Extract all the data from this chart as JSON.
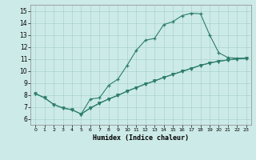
{
  "xlabel": "Humidex (Indice chaleur)",
  "bg_color": "#cceae7",
  "line_color": "#2d7d6e",
  "grid_color": "#aad4d0",
  "xlim": [
    -0.5,
    23.5
  ],
  "ylim": [
    5.5,
    15.5
  ],
  "xticks": [
    0,
    1,
    2,
    3,
    4,
    5,
    6,
    7,
    8,
    9,
    10,
    11,
    12,
    13,
    14,
    15,
    16,
    17,
    18,
    19,
    20,
    21,
    22,
    23
  ],
  "yticks": [
    6,
    7,
    8,
    9,
    10,
    11,
    12,
    13,
    14,
    15
  ],
  "line1_x": [
    0,
    1,
    2,
    3,
    4,
    5,
    6,
    7,
    8,
    9,
    10,
    11,
    12,
    13,
    14,
    15,
    16,
    17,
    18,
    19,
    20,
    21,
    22,
    23
  ],
  "line1_y": [
    8.1,
    7.75,
    7.2,
    6.9,
    6.75,
    6.4,
    7.65,
    7.75,
    8.8,
    9.3,
    10.45,
    11.7,
    12.55,
    12.7,
    13.85,
    14.1,
    14.6,
    14.8,
    14.75,
    13.0,
    11.5,
    11.1,
    11.05,
    11.05
  ],
  "line2_x": [
    0,
    1,
    2,
    3,
    4,
    5,
    6,
    7,
    8,
    9,
    10,
    11,
    12,
    13,
    14,
    15,
    16,
    17,
    18,
    19,
    20,
    21,
    22,
    23
  ],
  "line2_y": [
    8.1,
    7.75,
    7.2,
    6.9,
    6.75,
    6.4,
    6.9,
    7.3,
    7.65,
    7.95,
    8.3,
    8.6,
    8.9,
    9.15,
    9.45,
    9.7,
    9.95,
    10.2,
    10.45,
    10.65,
    10.8,
    10.9,
    11.0,
    11.05
  ],
  "line3_x": [
    5,
    6,
    7,
    8,
    9,
    10,
    11,
    12,
    13,
    14,
    15,
    16,
    17,
    18,
    19,
    20,
    21,
    22,
    23
  ],
  "line3_y": [
    6.4,
    6.9,
    7.3,
    7.65,
    7.95,
    8.3,
    8.6,
    8.9,
    9.15,
    9.45,
    9.7,
    9.95,
    10.2,
    10.45,
    10.65,
    10.8,
    10.9,
    11.0,
    11.05
  ]
}
